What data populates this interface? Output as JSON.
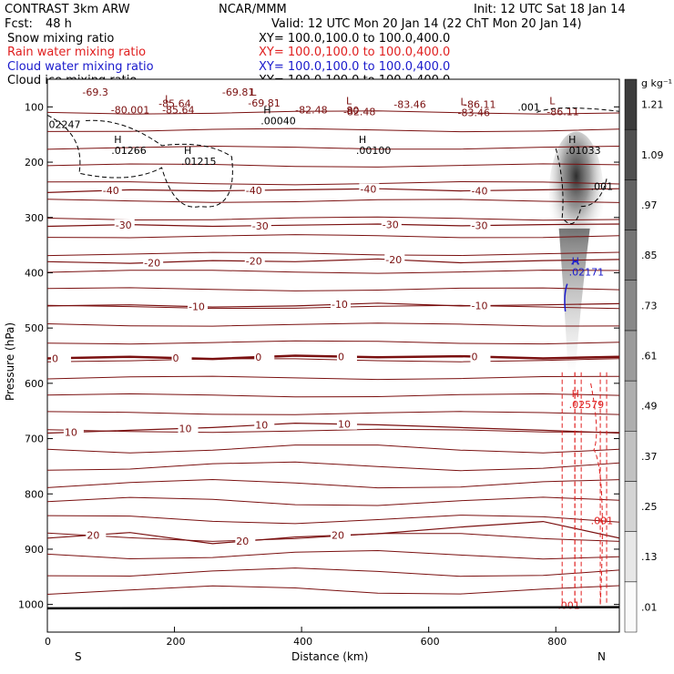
{
  "header": {
    "model": "CONTRAST  3km ARW",
    "org": "NCAR/MMM",
    "init": "Init: 12 UTC Sat 18 Jan 14",
    "fcst_label": "Fcst:",
    "fcst_value": "48 h",
    "valid": "Valid: 12 UTC Mon 20 Jan 14 (22 ChT Mon 20 Jan 14)",
    "fields": [
      {
        "name": "Snow mixing ratio",
        "xy": "XY= 100.0,100.0 to 100.0,400.0",
        "color": "#000000"
      },
      {
        "name": "Rain water mixing ratio",
        "xy": "XY= 100.0,100.0 to 100.0,400.0",
        "color": "#e02020"
      },
      {
        "name": "Cloud water mixing ratio",
        "xy": "XY= 100.0,100.0 to 100.0,400.0",
        "color": "#1a1acc"
      },
      {
        "name": "Cloud ice mixing ratio",
        "xy": "XY= 100.0,100.0 to 100.0,400.0",
        "color": "#000000"
      }
    ]
  },
  "colors": {
    "temperature": "#7a1010",
    "rain": "#e02020",
    "cloud_water": "#1a1acc",
    "ice": "#000000"
  },
  "chart_data": {
    "type": "heatmap",
    "xlabel": "Distance (km)",
    "ylabel": "Pressure (hPa)",
    "xlim": [
      0,
      900
    ],
    "ylim": [
      1050,
      50
    ],
    "x_ticks": [
      0,
      200,
      400,
      600,
      800
    ],
    "x_tick_labels": [
      "0",
      "200",
      "400",
      "600",
      "800"
    ],
    "y_ticks": [
      100,
      200,
      300,
      400,
      500,
      600,
      700,
      800,
      900,
      1000
    ],
    "y_tick_labels": [
      "100",
      "200",
      "300",
      "400",
      "500",
      "600",
      "700",
      "800",
      "900",
      "1000"
    ],
    "end_labels": {
      "left": "S",
      "right": "N"
    },
    "colorbar": {
      "unit": "g kg⁻¹",
      "levels": [
        ".01",
        ".13",
        ".25",
        ".37",
        ".49",
        ".61",
        ".73",
        ".85",
        ".97",
        "1.09",
        "1.21"
      ],
      "level_values": [
        0.01,
        0.13,
        0.25,
        0.37,
        0.49,
        0.61,
        0.73,
        0.85,
        0.97,
        1.09,
        1.21
      ]
    },
    "temperature_isotherms": [
      {
        "label": "-40",
        "p": [
          255,
          250,
          252,
          250,
          248,
          252,
          250,
          248
        ],
        "label_x": [
          100,
          325,
          505,
          680
        ]
      },
      {
        "label": "-30",
        "p": [
          316,
          313,
          316,
          314,
          312,
          315,
          313,
          312
        ],
        "label_x": [
          120,
          335,
          540,
          680
        ]
      },
      {
        "label": "-20",
        "p": [
          380,
          383,
          378,
          380,
          375,
          382,
          378,
          376
        ],
        "label_x": [
          165,
          325,
          545
        ]
      },
      {
        "label": "-10",
        "p": [
          460,
          458,
          462,
          460,
          455,
          460,
          458,
          456
        ],
        "label_x": [
          235,
          460,
          680
        ]
      },
      {
        "label": "0",
        "p": [
          555,
          552,
          556,
          550,
          553,
          551,
          555,
          552
        ],
        "label_x": [
          20,
          210,
          340,
          470,
          680
        ]
      },
      {
        "label": "10",
        "p": [
          690,
          685,
          680,
          672,
          675,
          680,
          685,
          690
        ],
        "label_x": [
          40,
          220,
          340,
          470
        ]
      },
      {
        "label": "20",
        "p": [
          880,
          870,
          890,
          878,
          872,
          860,
          850,
          880
        ],
        "label_x": [
          75,
          310,
          460
        ]
      }
    ],
    "temperature_labels_upper": [
      "-69.3",
      "-85.64",
      "-69.81",
      "-80.001",
      "-82.48",
      "-80",
      "-83.46",
      "-86.11",
      ".001"
    ],
    "extrema": [
      {
        "type": "L",
        "value": "-85.64"
      },
      {
        "type": "L",
        "value": "-69.81"
      },
      {
        "type": "L",
        "value": "-82.48"
      },
      {
        "type": "L",
        "value": "-83.46"
      },
      {
        "type": "L",
        "value": "-86.11"
      },
      {
        "type": "H",
        "value": ".01266"
      },
      {
        "type": "H",
        "value": ".01215"
      },
      {
        "type": "H",
        "value": ".00040"
      },
      {
        "type": "H",
        "value": ".00100"
      },
      {
        "type": "H",
        "value": ".01033"
      },
      {
        "type": "H",
        "value": ".02171"
      },
      {
        "type": "H",
        "value": ".02579"
      }
    ],
    "ice_contours": [
      {
        "label": ".001",
        "x": [
          55,
          130,
          185,
          270,
          300
        ],
        "p": [
          120,
          130,
          125,
          200,
          280
        ]
      },
      {
        "label": ".001",
        "x": [
          805,
          845
        ],
        "p": [
          230,
          260
        ]
      }
    ],
    "rain_contours": [
      {
        "label": ".001",
        "x": [
          860,
          880
        ],
        "p": [
          820,
          1000
        ]
      },
      {
        "label": ".001",
        "x": [
          810,
          830
        ],
        "p": [
          960,
          1000
        ]
      }
    ],
    "snow_plume": {
      "x_center": 825,
      "p_top": 180,
      "p_bottom": 580,
      "max_value": 1.21
    },
    "extra_labels": [
      ".02247",
      ".001",
      ".001",
      ".001"
    ]
  }
}
